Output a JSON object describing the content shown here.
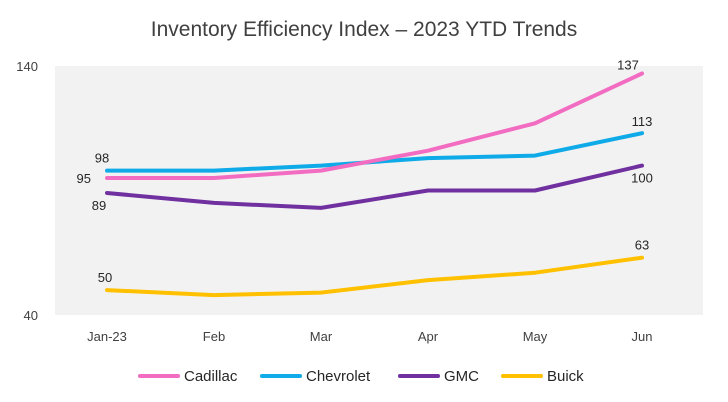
{
  "chart_data": {
    "type": "line",
    "title": "Inventory Efficiency Index – 2023 YTD Trends",
    "categories": [
      "Jan-23",
      "Feb",
      "Mar",
      "Apr",
      "May",
      "Jun"
    ],
    "ylim": [
      40,
      140
    ],
    "yticks": [
      "140",
      "40"
    ],
    "grid": false,
    "legend_position": "bottom",
    "series": [
      {
        "name": "Cadillac",
        "color": "#F26DC2",
        "values": [
          95,
          95,
          98,
          106,
          117,
          137
        ],
        "labels": [
          {
            "index": 0,
            "text": "95"
          },
          {
            "index": 5,
            "text": "137"
          }
        ]
      },
      {
        "name": "Chevrolet",
        "color": "#0FAAE8",
        "values": [
          98,
          98,
          100,
          103,
          104,
          113
        ],
        "labels": [
          {
            "index": 0,
            "text": "98"
          },
          {
            "index": 5,
            "text": "113"
          }
        ]
      },
      {
        "name": "GMC",
        "color": "#7030A0",
        "values": [
          89,
          85,
          83,
          90,
          90,
          100
        ],
        "labels": [
          {
            "index": 0,
            "text": "89"
          },
          {
            "index": 5,
            "text": "100"
          }
        ]
      },
      {
        "name": "Buick",
        "color": "#FFC000",
        "values": [
          50,
          48,
          49,
          54,
          57,
          63
        ],
        "labels": [
          {
            "index": 0,
            "text": "50"
          },
          {
            "index": 5,
            "text": "63"
          }
        ]
      }
    ]
  }
}
